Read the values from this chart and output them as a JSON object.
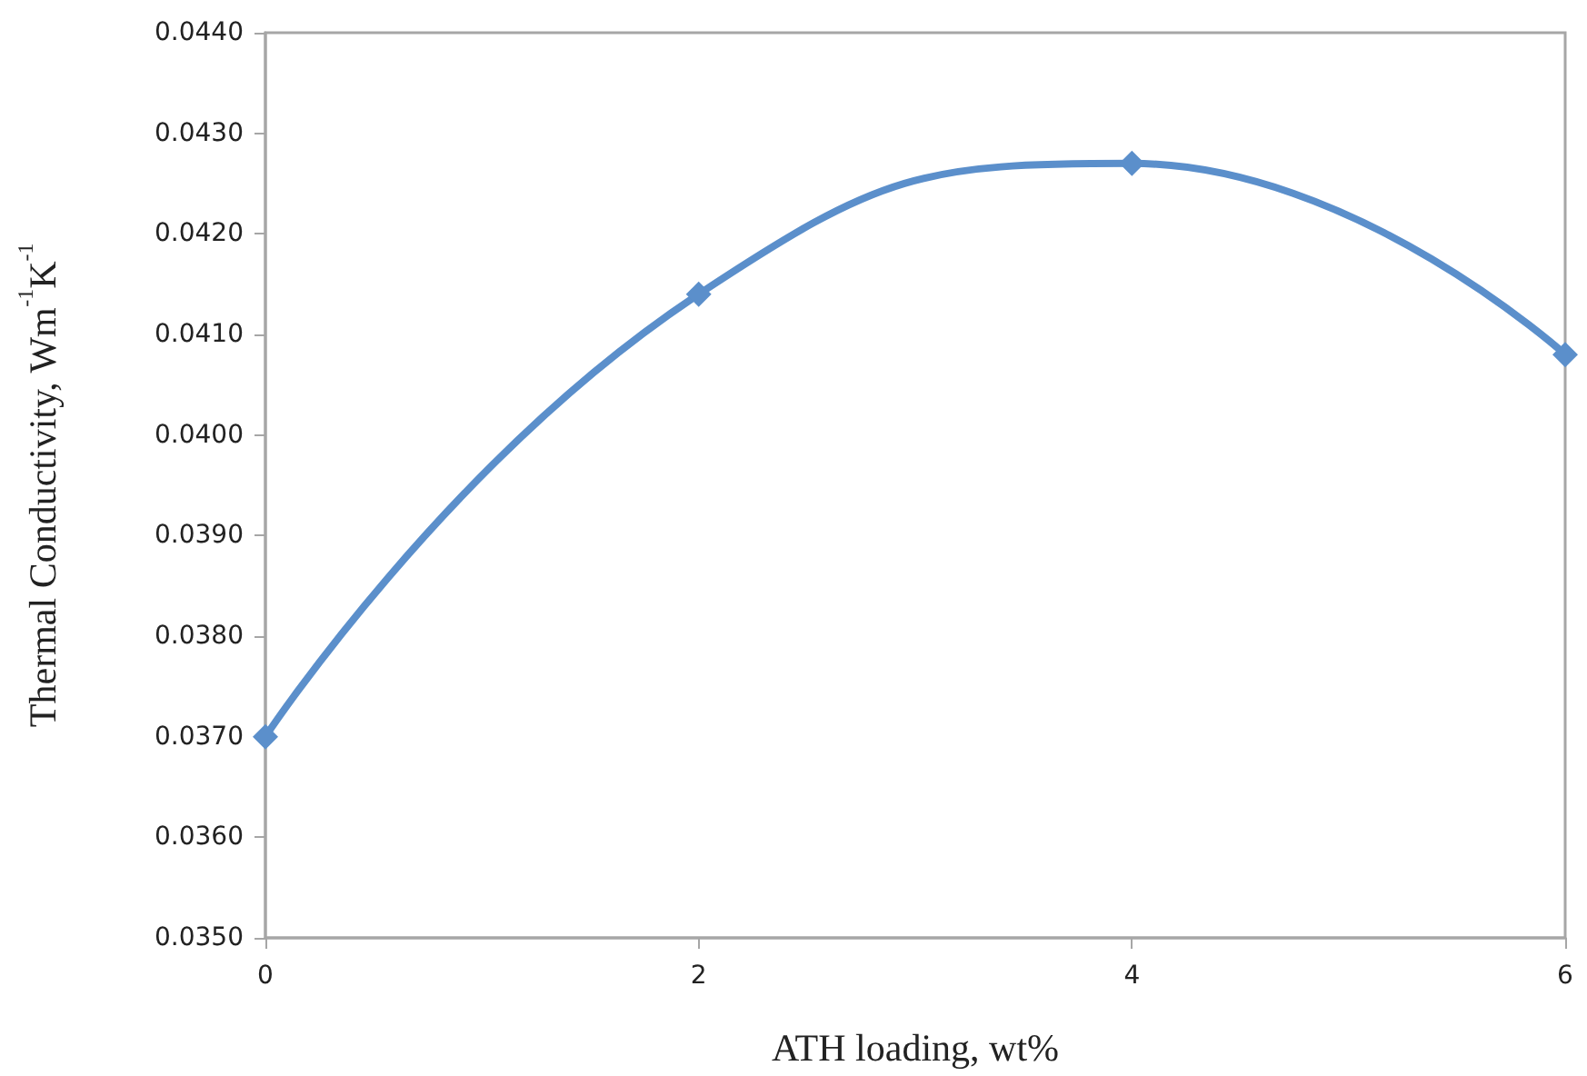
{
  "chart_data": {
    "type": "line",
    "xlabel": "ATH loading, wt%",
    "ylabel": "Thermal Conductivity, Wm$^{-1}$K$^{-1}$",
    "x": [
      0,
      2,
      4,
      6
    ],
    "series": [
      {
        "color": "#5b8fcb",
        "values": [
          0.037,
          0.0414,
          0.0427,
          0.0408
        ]
      }
    ],
    "xlim": [
      0,
      6
    ],
    "xticks": [
      0,
      2,
      4,
      6
    ],
    "ylim": [
      0.035,
      0.044
    ],
    "yticks": [
      {
        "value": 0.035,
        "label": "0.0350"
      },
      {
        "value": 0.036,
        "label": "0.0360"
      },
      {
        "value": 0.037,
        "label": "0.0370"
      },
      {
        "value": 0.038,
        "label": "0.0380"
      },
      {
        "value": 0.039,
        "label": "0.0390"
      },
      {
        "value": 0.04,
        "label": "0.0400"
      },
      {
        "value": 0.041,
        "label": "0.0410"
      },
      {
        "value": 0.042,
        "label": "0.0420"
      },
      {
        "value": 0.043,
        "label": "0.0430"
      },
      {
        "value": 0.044,
        "label": "0.0440"
      }
    ],
    "grid": false,
    "marker": "diamond",
    "line_style": "solid"
  }
}
